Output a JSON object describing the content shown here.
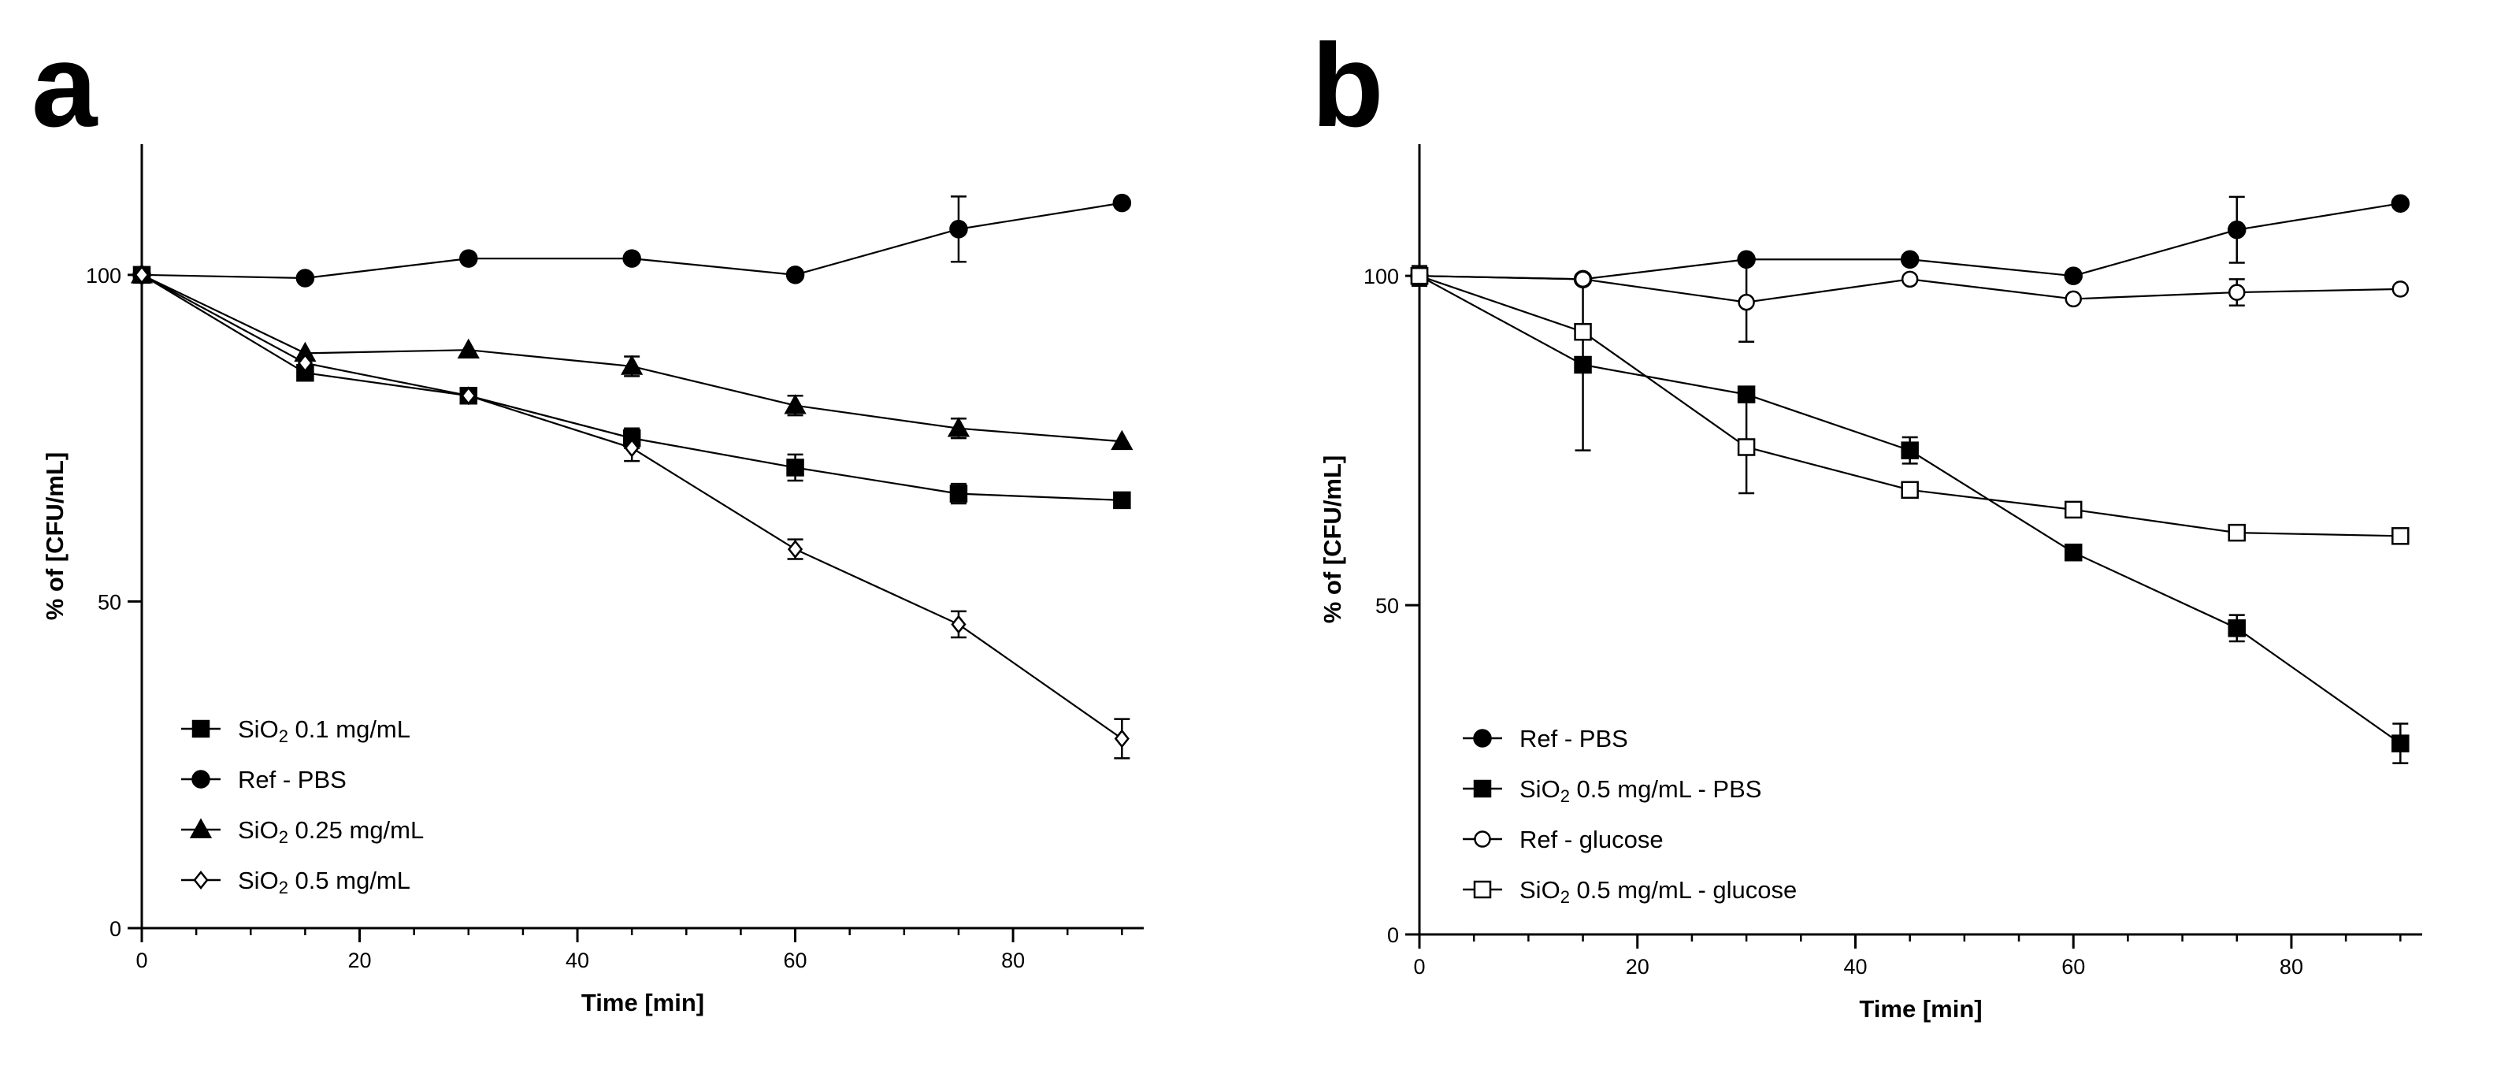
{
  "chart_data": [
    {
      "panel": "a",
      "type": "line",
      "xlabel": "Time [min]",
      "ylabel": "% of [CFU/mL]",
      "xlim": [
        0,
        92
      ],
      "ylim": [
        0,
        120
      ],
      "xticks": [
        0,
        20,
        40,
        60,
        80
      ],
      "yticks": [
        0,
        50,
        100
      ],
      "legend_position": "bottom-left",
      "series": [
        {
          "name_parts": [
            "SiO",
            "2",
            " 0.1 mg/mL"
          ],
          "marker": "square-filled",
          "x": [
            0,
            15,
            30,
            45,
            60,
            75,
            90
          ],
          "y": [
            100,
            85,
            81.5,
            75,
            70.5,
            66.5,
            65.5
          ],
          "err": [
            0,
            1,
            1,
            1.5,
            2,
            1.5,
            1
          ]
        },
        {
          "name_parts": [
            "Ref - PBS"
          ],
          "marker": "circle-filled",
          "x": [
            0,
            15,
            30,
            45,
            60,
            75,
            90
          ],
          "y": [
            100,
            99.5,
            102.5,
            102.5,
            100,
            107,
            111
          ],
          "err": [
            0,
            0,
            0,
            0,
            0,
            5,
            0
          ]
        },
        {
          "name_parts": [
            "SiO",
            "2",
            " 0.25 mg/mL"
          ],
          "marker": "triangle-filled",
          "x": [
            0,
            15,
            30,
            45,
            60,
            75,
            90
          ],
          "y": [
            100,
            88,
            88.5,
            86,
            80,
            76.5,
            74.5
          ],
          "err": [
            0,
            0,
            0,
            1.5,
            1.5,
            1.5,
            0
          ]
        },
        {
          "name_parts": [
            "SiO",
            "2",
            " 0.5 mg/mL"
          ],
          "marker": "diamond-open",
          "x": [
            0,
            15,
            30,
            45,
            60,
            75,
            90
          ],
          "y": [
            100,
            86.5,
            81.5,
            73.5,
            58,
            46.5,
            29
          ],
          "err": [
            0,
            0,
            0,
            2,
            1.5,
            2,
            3
          ]
        }
      ]
    },
    {
      "panel": "b",
      "type": "line",
      "xlabel": "Time [min]",
      "ylabel": "% of [CFU/mL]",
      "xlim": [
        0,
        92
      ],
      "ylim": [
        0,
        120
      ],
      "xticks": [
        0,
        20,
        40,
        60,
        80
      ],
      "yticks": [
        0,
        50,
        100
      ],
      "legend_position": "bottom-left",
      "series": [
        {
          "name_parts": [
            "Ref - PBS"
          ],
          "marker": "circle-filled",
          "x": [
            0,
            15,
            30,
            45,
            60,
            75,
            90
          ],
          "y": [
            100,
            99.5,
            102.5,
            102.5,
            100,
            107,
            111
          ],
          "err": [
            1,
            0,
            0,
            0,
            0,
            5,
            0
          ]
        },
        {
          "name_parts": [
            "SiO",
            "2",
            " 0.5 mg/mL - PBS"
          ],
          "marker": "square-filled",
          "x": [
            0,
            15,
            30,
            45,
            60,
            75,
            90
          ],
          "y": [
            100,
            86.5,
            82,
            73.5,
            58,
            46.5,
            29
          ],
          "err": [
            0,
            13,
            0,
            2,
            1,
            2,
            3
          ]
        },
        {
          "name_parts": [
            "Ref - glucose"
          ],
          "marker": "circle-open",
          "x": [
            0,
            15,
            30,
            45,
            60,
            75,
            90
          ],
          "y": [
            100,
            99.5,
            96,
            99.5,
            96.5,
            97.5,
            98
          ],
          "err": [
            1.5,
            0,
            6,
            0,
            0,
            2,
            0
          ]
        },
        {
          "name_parts": [
            "SiO",
            "2",
            " 0.5 mg/mL - glucose"
          ],
          "marker": "square-open",
          "x": [
            0,
            15,
            30,
            45,
            60,
            75,
            90
          ],
          "y": [
            100,
            91.5,
            74,
            67.5,
            64.5,
            61,
            60.5
          ],
          "err": [
            0,
            0,
            7,
            0,
            0,
            0,
            0
          ]
        }
      ]
    }
  ]
}
